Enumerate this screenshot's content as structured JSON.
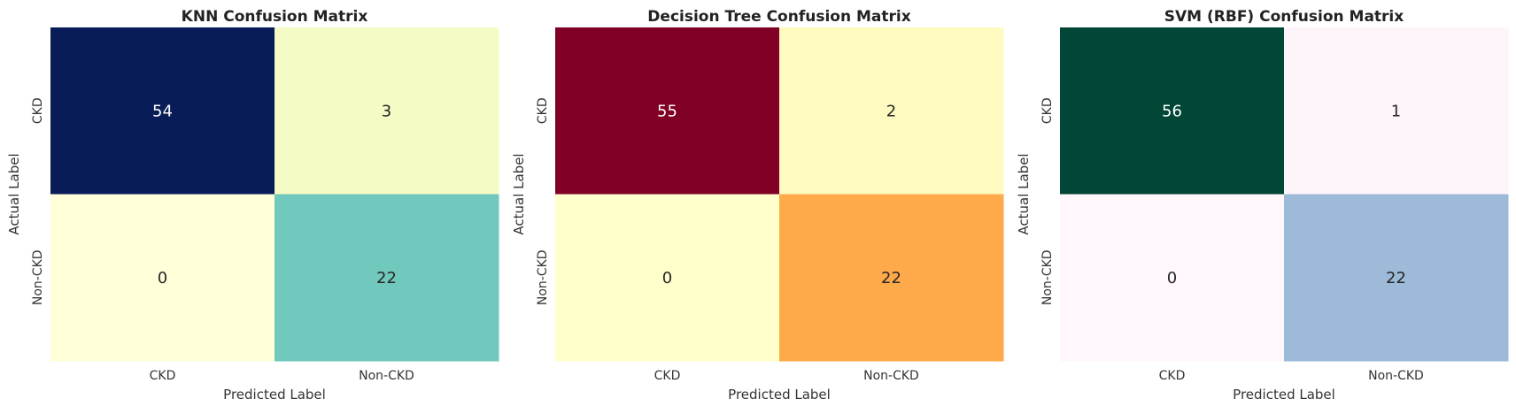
{
  "chart_data": [
    {
      "type": "heatmap",
      "title": "KNN Confusion Matrix",
      "xlabel": "Predicted Label",
      "ylabel": "Actual Label",
      "x_categories": [
        "CKD",
        "Non-CKD"
      ],
      "y_categories": [
        "CKD",
        "Non-CKD"
      ],
      "values": [
        [
          54,
          3
        ],
        [
          0,
          22
        ]
      ],
      "colormap": "YlGnBu",
      "cell_colors": [
        [
          "#081d58",
          "#f5fbc4"
        ],
        [
          "#ffffd9",
          "#71c8bd"
        ]
      ],
      "text_colors": [
        [
          "#ffffff",
          "#262626"
        ],
        [
          "#262626",
          "#262626"
        ]
      ],
      "colorbar": false
    },
    {
      "type": "heatmap",
      "title": "Decision Tree Confusion Matrix",
      "xlabel": "Predicted Label",
      "ylabel": "Actual Label",
      "x_categories": [
        "CKD",
        "Non-CKD"
      ],
      "y_categories": [
        "CKD",
        "Non-CKD"
      ],
      "values": [
        [
          55,
          2
        ],
        [
          0,
          22
        ]
      ],
      "colormap": "YlOrRd",
      "cell_colors": [
        [
          "#800026",
          "#fffac0"
        ],
        [
          "#ffffcc",
          "#feaa4b"
        ]
      ],
      "text_colors": [
        [
          "#ffffff",
          "#262626"
        ],
        [
          "#262626",
          "#262626"
        ]
      ],
      "colorbar": false
    },
    {
      "type": "heatmap",
      "title": "SVM (RBF) Confusion Matrix",
      "xlabel": "Predicted Label",
      "ylabel": "Actual Label",
      "x_categories": [
        "CKD",
        "Non-CKD"
      ],
      "y_categories": [
        "CKD",
        "Non-CKD"
      ],
      "values": [
        [
          56,
          1
        ],
        [
          0,
          22
        ]
      ],
      "colormap": "PuBuGn",
      "cell_colors": [
        [
          "#014636",
          "#fef5fa"
        ],
        [
          "#fff7fb",
          "#9dbad9"
        ]
      ],
      "text_colors": [
        [
          "#ffffff",
          "#262626"
        ],
        [
          "#262626",
          "#262626"
        ]
      ],
      "colorbar": false
    }
  ]
}
